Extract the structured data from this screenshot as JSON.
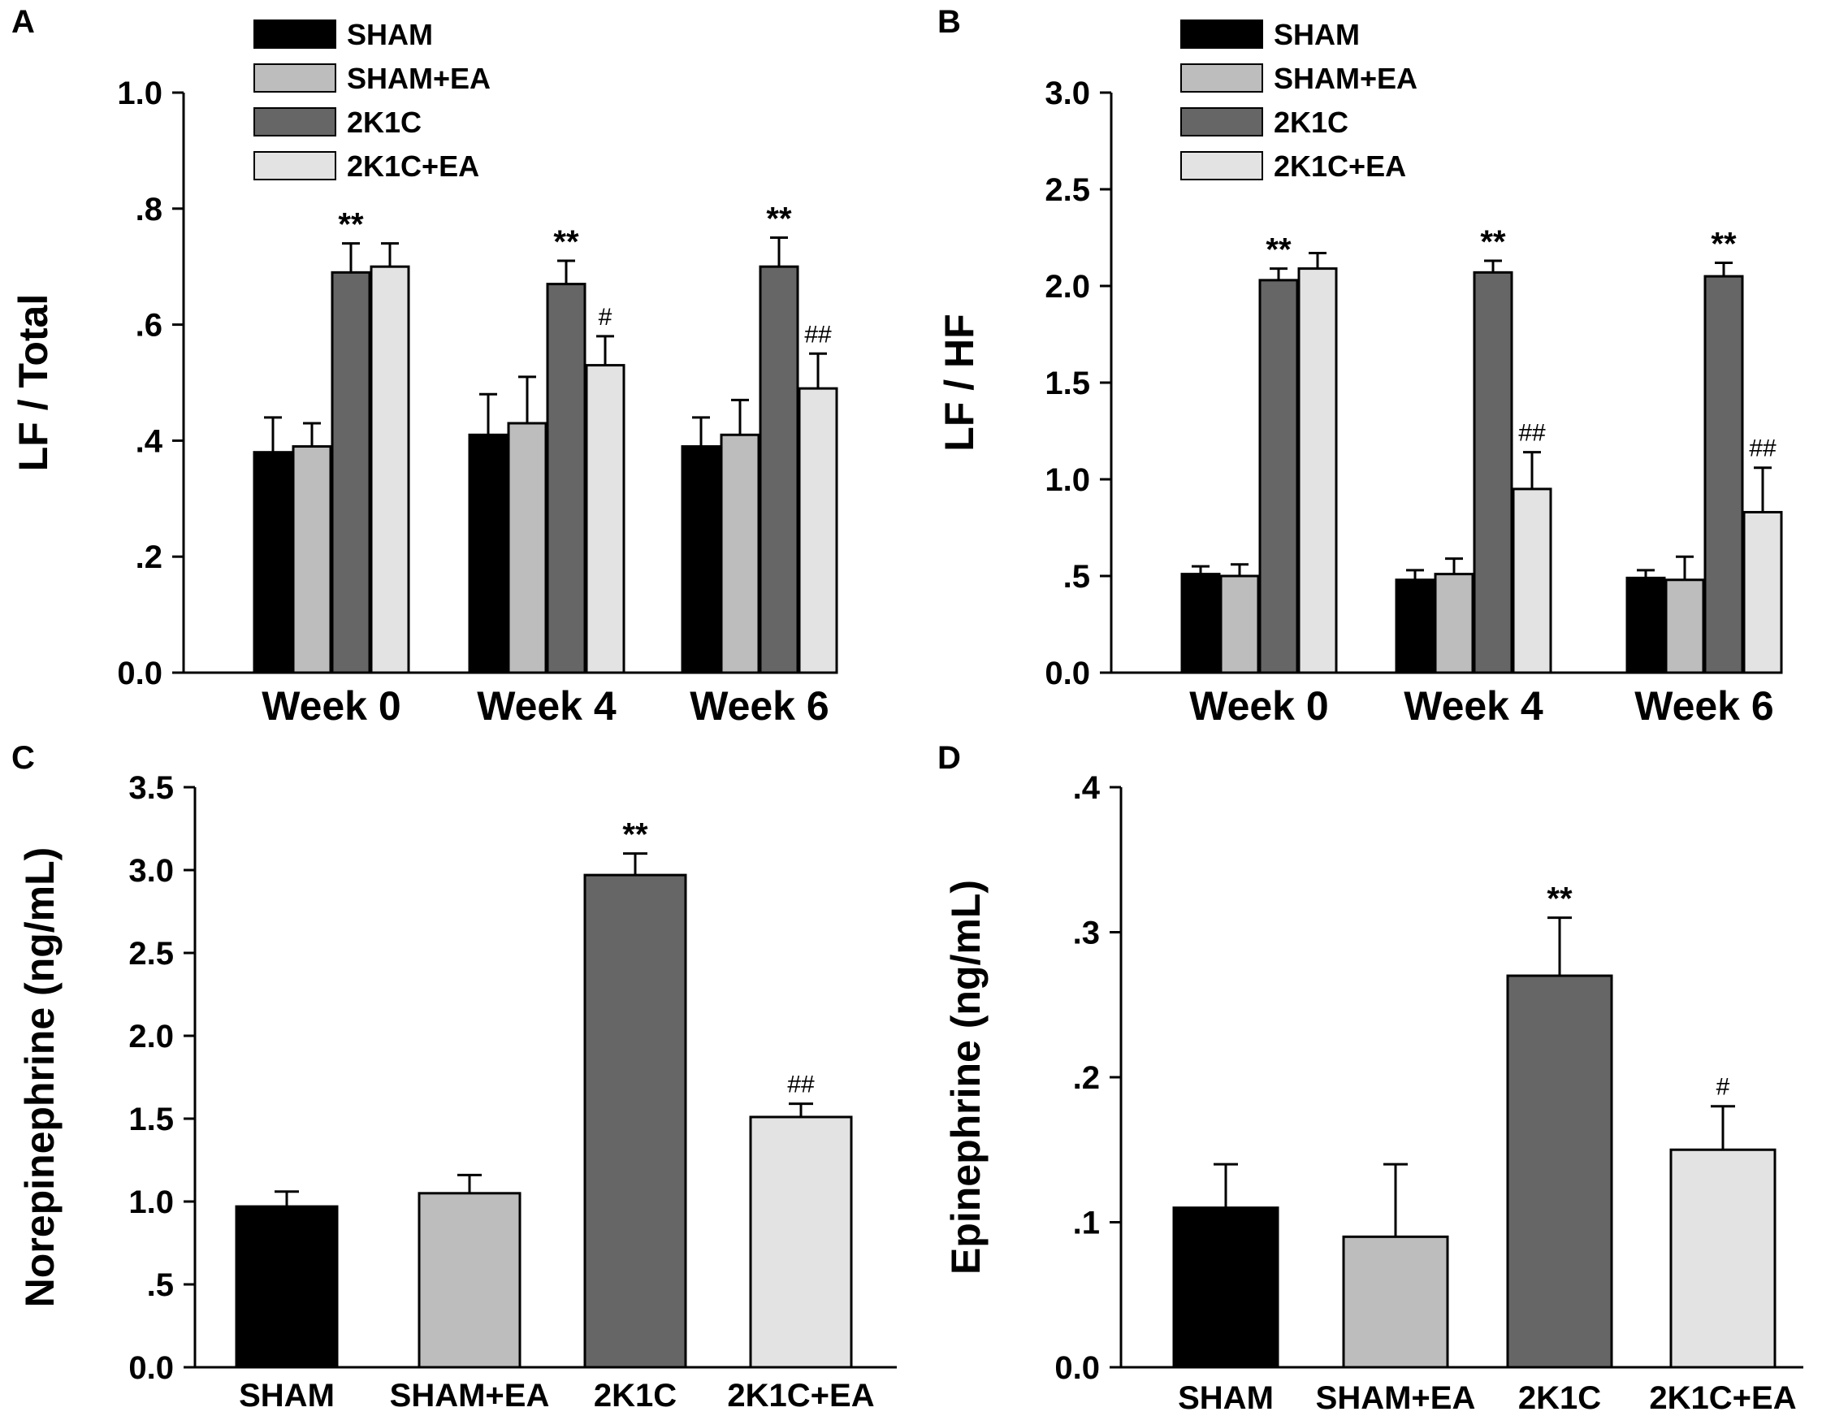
{
  "figure": {
    "colors": {
      "SHAM": "#000000",
      "SHAM+EA": "#bdbdbd",
      "2K1C": "#666666",
      "2K1C+EA": "#e3e3e3"
    }
  },
  "chart_data": [
    {
      "panel": "A",
      "type": "bar",
      "ylabel": "LF / Total",
      "ylim": [
        0,
        1.0
      ],
      "yticks": [
        "0.0",
        ".2",
        ".4",
        ".6",
        ".8",
        "1.0"
      ],
      "categories": [
        "Week 0",
        "Week 4",
        "Week 6"
      ],
      "legend": [
        "SHAM",
        "SHAM+EA",
        "2K1C",
        "2K1C+EA"
      ],
      "series": [
        {
          "name": "SHAM",
          "values": [
            0.38,
            0.41,
            0.39
          ],
          "errors": [
            0.06,
            0.07,
            0.05
          ]
        },
        {
          "name": "SHAM+EA",
          "values": [
            0.39,
            0.43,
            0.41
          ],
          "errors": [
            0.04,
            0.08,
            0.06
          ]
        },
        {
          "name": "2K1C",
          "values": [
            0.69,
            0.67,
            0.7
          ],
          "errors": [
            0.05,
            0.04,
            0.05
          ],
          "annotations": [
            "**",
            "**",
            "**"
          ]
        },
        {
          "name": "2K1C+EA",
          "values": [
            0.7,
            0.53,
            0.49
          ],
          "errors": [
            0.04,
            0.05,
            0.06
          ],
          "annotations": [
            "",
            "#",
            "##"
          ]
        }
      ]
    },
    {
      "panel": "B",
      "type": "bar",
      "ylabel": "LF / HF",
      "ylim": [
        0,
        3.0
      ],
      "yticks": [
        "0.0",
        ".5",
        "1.0",
        "1.5",
        "2.0",
        "2.5",
        "3.0"
      ],
      "categories": [
        "Week 0",
        "Week 4",
        "Week 6"
      ],
      "legend": [
        "SHAM",
        "SHAM+EA",
        "2K1C",
        "2K1C+EA"
      ],
      "series": [
        {
          "name": "SHAM",
          "values": [
            0.51,
            0.48,
            0.49
          ],
          "errors": [
            0.04,
            0.05,
            0.04
          ]
        },
        {
          "name": "SHAM+EA",
          "values": [
            0.5,
            0.51,
            0.48
          ],
          "errors": [
            0.06,
            0.08,
            0.12
          ]
        },
        {
          "name": "2K1C",
          "values": [
            2.03,
            2.07,
            2.05
          ],
          "errors": [
            0.06,
            0.06,
            0.07
          ],
          "annotations": [
            "**",
            "**",
            "**"
          ]
        },
        {
          "name": "2K1C+EA",
          "values": [
            2.09,
            0.95,
            0.83
          ],
          "errors": [
            0.08,
            0.19,
            0.23
          ],
          "annotations": [
            "",
            "##",
            "##"
          ]
        }
      ]
    },
    {
      "panel": "C",
      "type": "bar",
      "ylabel": "Norepinephrine (ng/mL)",
      "ylim": [
        0,
        3.5
      ],
      "yticks": [
        "0.0",
        ".5",
        "1.0",
        "1.5",
        "2.0",
        "2.5",
        "3.0",
        "3.5"
      ],
      "categories": [
        "SHAM",
        "SHAM+EA",
        "2K1C",
        "2K1C+EA"
      ],
      "values": [
        0.97,
        1.05,
        2.97,
        1.51
      ],
      "errors": [
        0.09,
        0.11,
        0.13,
        0.08
      ],
      "annotations": [
        "",
        "",
        "**",
        "##"
      ]
    },
    {
      "panel": "D",
      "type": "bar",
      "ylabel": "Epinephrine (ng/mL)",
      "ylim": [
        0,
        0.4
      ],
      "yticks": [
        "0.0",
        ".1",
        ".2",
        ".3",
        ".4"
      ],
      "categories": [
        "SHAM",
        "SHAM+EA",
        "2K1C",
        "2K1C+EA"
      ],
      "values": [
        0.11,
        0.09,
        0.27,
        0.15
      ],
      "errors": [
        0.03,
        0.05,
        0.04,
        0.03
      ],
      "annotations": [
        "",
        "",
        "**",
        "#"
      ]
    }
  ]
}
